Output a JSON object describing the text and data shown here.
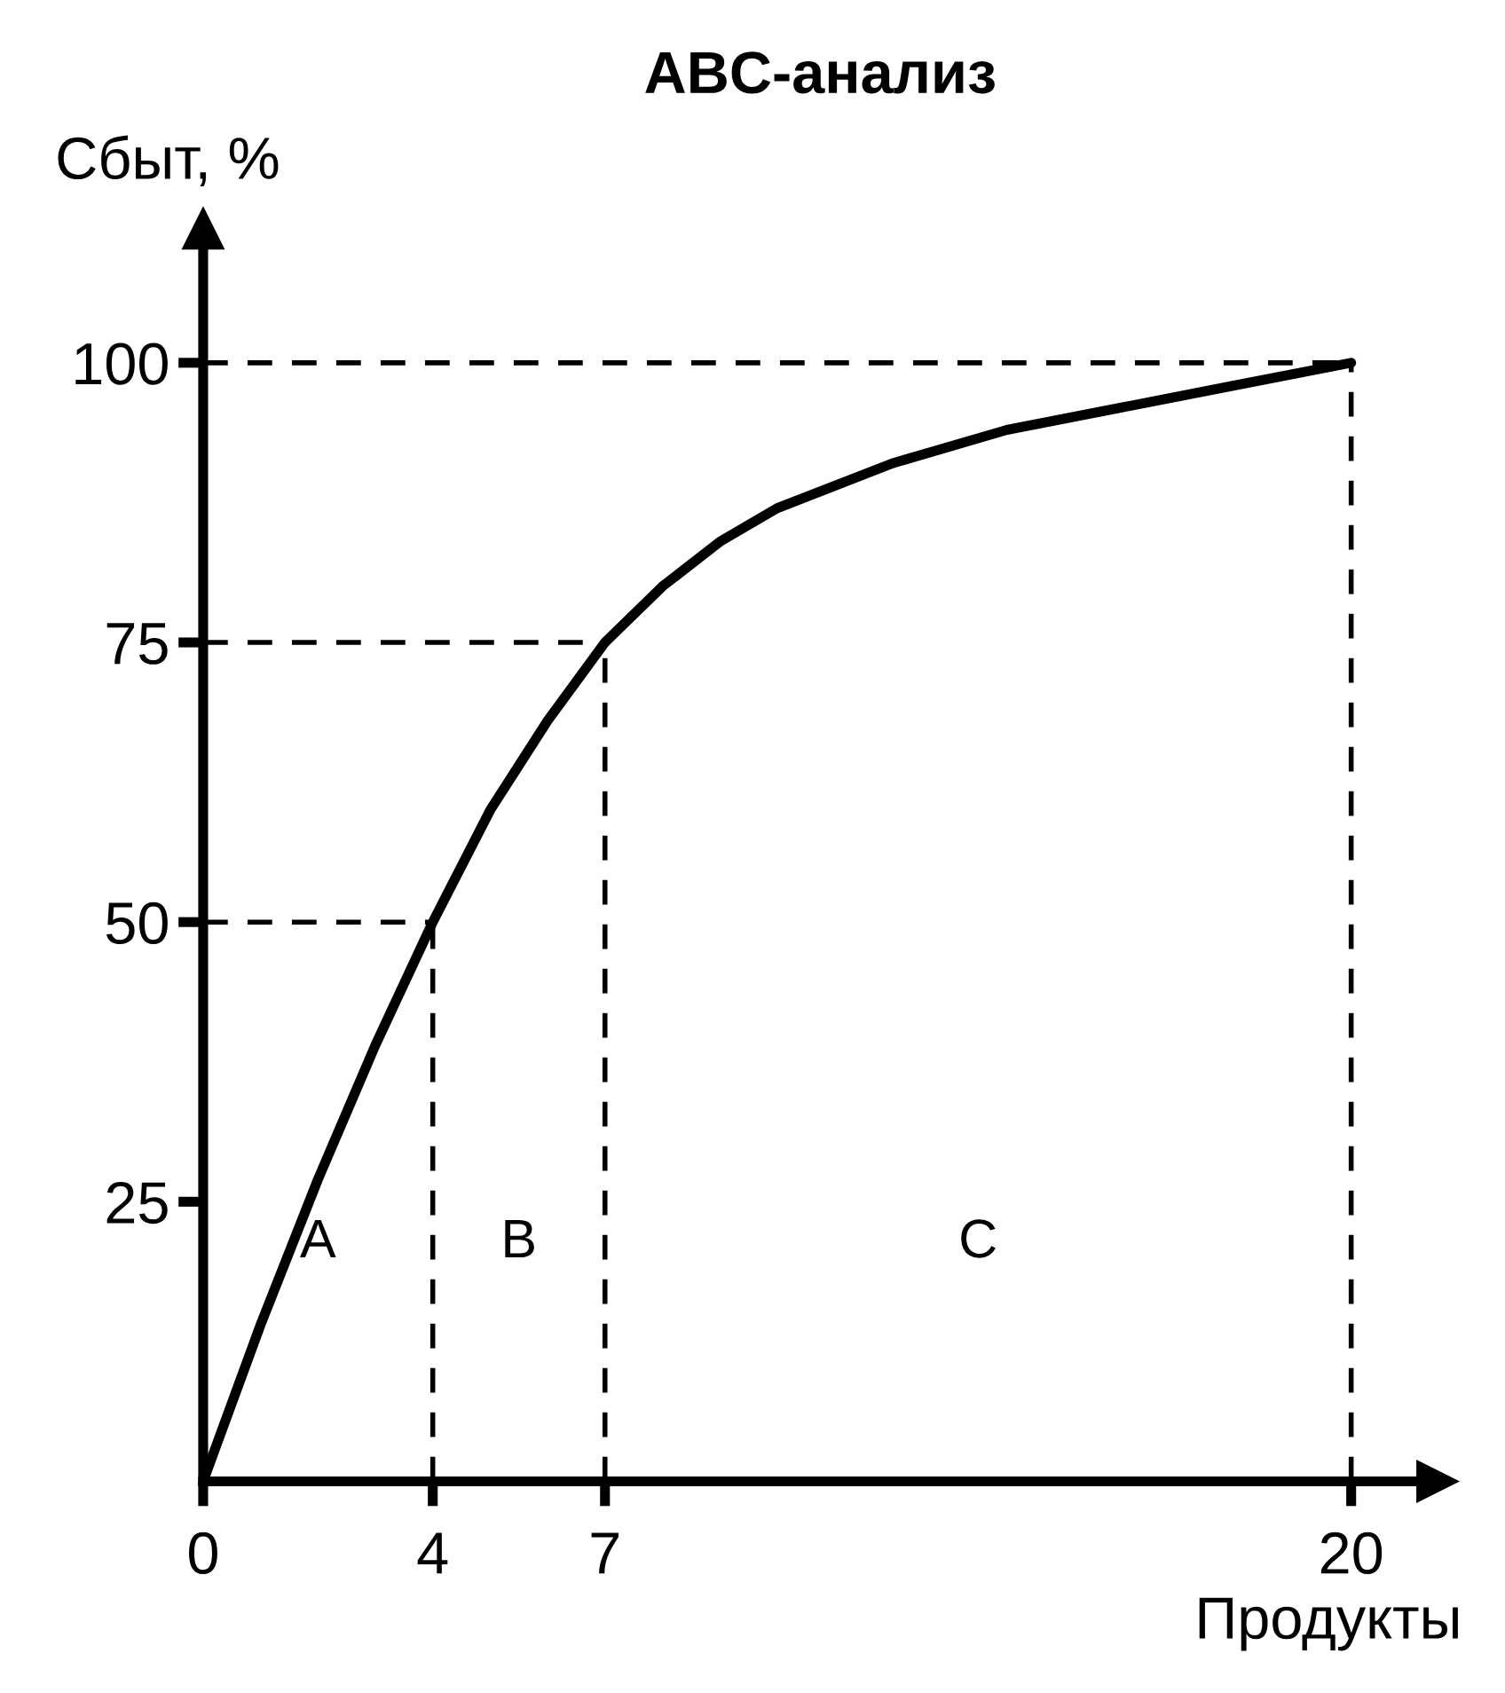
{
  "chart_data": {
    "type": "line",
    "title": "ABC-анализ",
    "xlabel": "Продукты",
    "ylabel": "Сбыт, %",
    "x": [
      0,
      1,
      2,
      3,
      4,
      5,
      6,
      7,
      8,
      9,
      10,
      12,
      14,
      16,
      18,
      20
    ],
    "series": [
      {
        "color": "#000000",
        "values": [
          0,
          14,
          27,
          39,
          50,
          60,
          68,
          75,
          80,
          84,
          87,
          91,
          94,
          96,
          98,
          100
        ]
      }
    ],
    "xlim": [
      0,
      21.5
    ],
    "ylim": [
      0,
      112
    ],
    "xticks": [
      0,
      4,
      7,
      20
    ],
    "yticks": [
      25,
      50,
      75,
      100
    ],
    "ref_lines": [
      {
        "axis": "x",
        "value": 4,
        "line_style": "dashed"
      },
      {
        "axis": "x",
        "value": 7,
        "line_style": "dashed"
      },
      {
        "axis": "x",
        "value": 20,
        "line_style": "dashed"
      },
      {
        "axis": "y",
        "value": 50,
        "line_style": "dashed"
      },
      {
        "axis": "y",
        "value": 75,
        "line_style": "dashed"
      },
      {
        "axis": "y",
        "value": 100,
        "line_style": "dashed"
      }
    ],
    "annotations": [
      "A",
      "B",
      "C"
    ],
    "grid": false,
    "legend": false
  }
}
